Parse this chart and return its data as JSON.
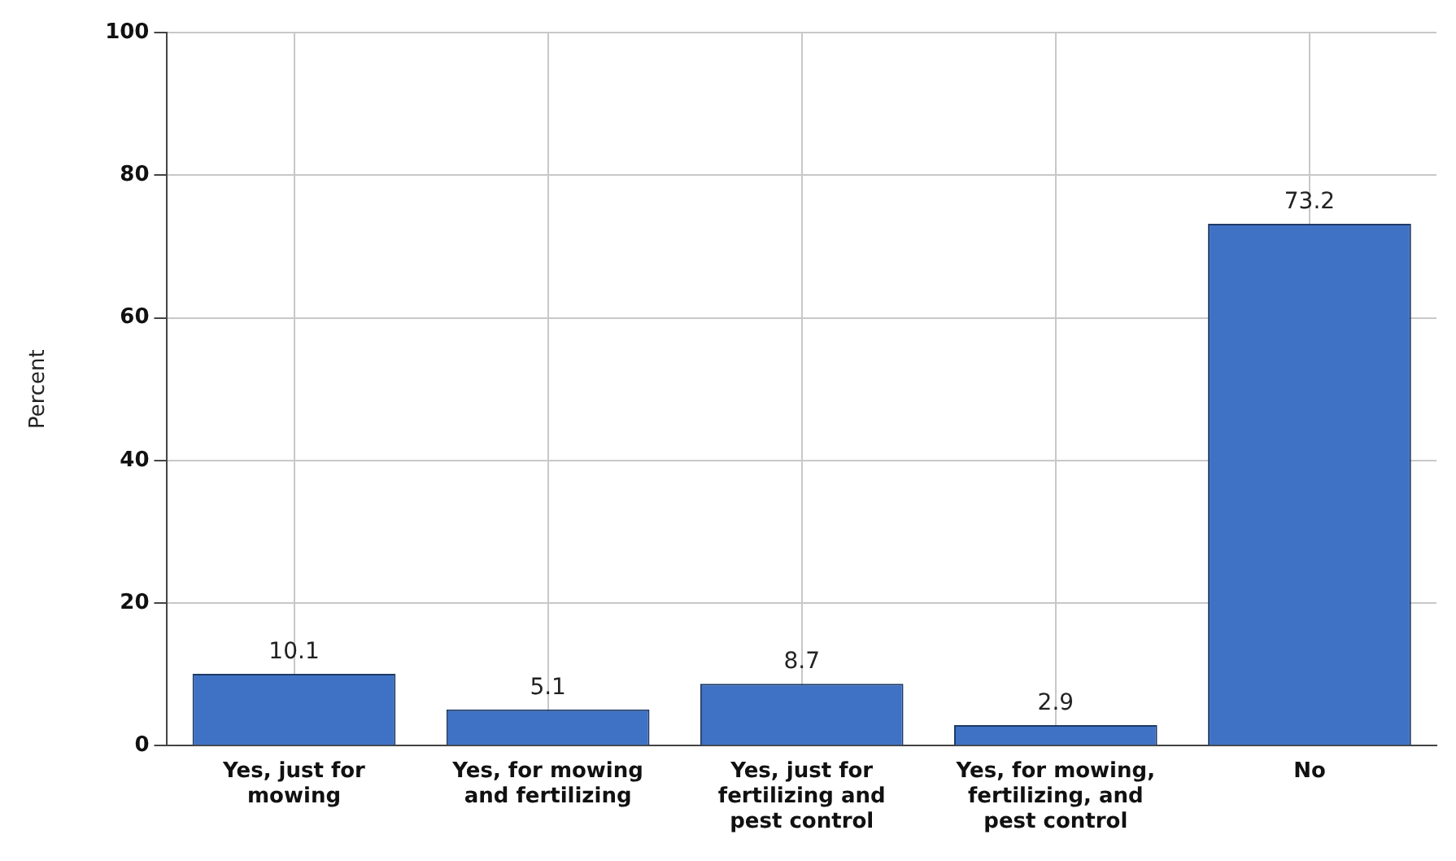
{
  "chart_data": {
    "type": "bar",
    "ylabel": "Percent",
    "categories": [
      "Yes, just for mowing",
      "Yes, for mowing and fertilizing",
      "Yes, just for fertilizing and pest control",
      "Yes, for mowing, fertilizing, and pest control",
      "No"
    ],
    "values": [
      10.1,
      5.1,
      8.7,
      2.9,
      73.2
    ],
    "color": "#3f72c4",
    "ylim": [
      0,
      100
    ],
    "yticks": [
      0,
      20,
      40,
      60,
      80,
      100
    ],
    "grid": true,
    "data_labels": true
  }
}
